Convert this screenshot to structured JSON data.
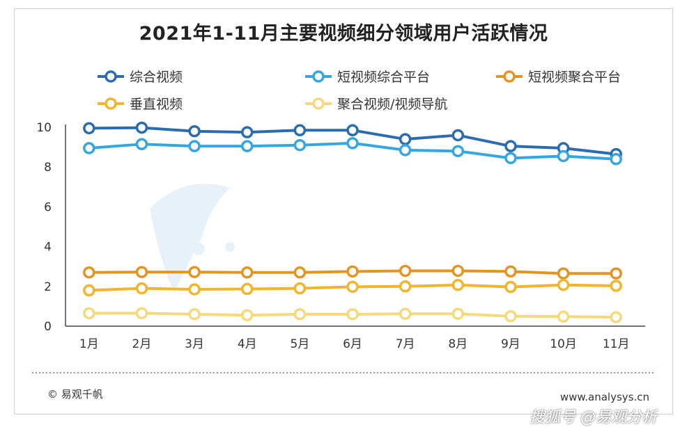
{
  "title": "2021年1-11月主要视频细分领域用户活跃情况",
  "footer": {
    "copyright": "© 易观千帆",
    "website": "www.analysys.cn"
  },
  "watermark": {
    "text": "搜狐号 @易观分析"
  },
  "chart_data": {
    "type": "line",
    "categories": [
      "1月",
      "2月",
      "3月",
      "4月",
      "5月",
      "6月",
      "7月",
      "8月",
      "9月",
      "10月",
      "11月"
    ],
    "ylim": [
      0,
      10
    ],
    "yticks": [
      0,
      2,
      4,
      6,
      8,
      10
    ],
    "grid": false,
    "legend_position": "top",
    "series": [
      {
        "name": "综合视频",
        "color": "#2b6cb0",
        "values": [
          9.95,
          9.98,
          9.8,
          9.75,
          9.85,
          9.85,
          9.4,
          9.6,
          9.05,
          8.95,
          8.65
        ]
      },
      {
        "name": "短视频综合平台",
        "color": "#35a7e0",
        "values": [
          8.95,
          9.15,
          9.05,
          9.05,
          9.1,
          9.2,
          8.85,
          8.8,
          8.45,
          8.55,
          8.4
        ]
      },
      {
        "name": "短视频聚合平台",
        "color": "#e59420",
        "values": [
          2.7,
          2.72,
          2.72,
          2.7,
          2.7,
          2.75,
          2.78,
          2.78,
          2.75,
          2.65,
          2.65
        ]
      },
      {
        "name": "垂直视频",
        "color": "#f2b52c",
        "values": [
          1.8,
          1.9,
          1.85,
          1.87,
          1.9,
          1.98,
          2.0,
          2.07,
          1.97,
          2.07,
          2.03
        ]
      },
      {
        "name": "聚合视频/视频导航",
        "color": "#f6d97a",
        "values": [
          0.65,
          0.65,
          0.6,
          0.55,
          0.6,
          0.6,
          0.62,
          0.62,
          0.5,
          0.48,
          0.45
        ]
      }
    ]
  }
}
